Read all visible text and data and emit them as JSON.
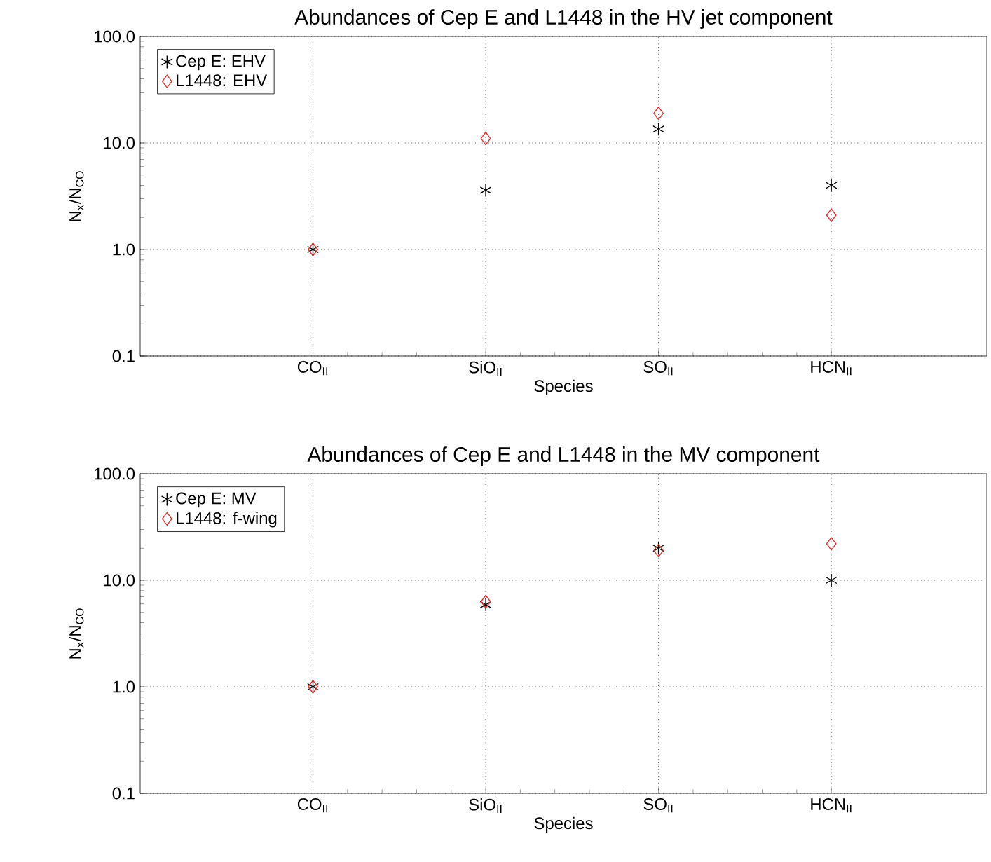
{
  "chart_data": [
    {
      "type": "scatter",
      "title": "Abundances of Cep E and L1448 in the HV jet component",
      "xlabel": "Species",
      "ylabel": "N$_{x}$/N$_{CO}$",
      "categories": [
        "CO$_{II}$",
        "SiO$_{II}$",
        "SO$_{II}$",
        "HCN$_{II}$"
      ],
      "series": [
        {
          "name": "Cep E: EHV",
          "color": "#000000",
          "marker": "cross",
          "values": [
            1.0,
            3.6,
            13.5,
            4.0
          ]
        },
        {
          "name": "L1448: EHV",
          "color": "#e03030",
          "marker": "diamond",
          "values": [
            1.0,
            11,
            19,
            2.1
          ]
        }
      ],
      "log": true,
      "ylim": [
        0.1,
        100
      ],
      "yticks": [
        0.1,
        {
          "value": 1,
          "label": "1.0"
        },
        {
          "value": 10,
          "label": "10.0"
        },
        {
          "value": 100,
          "label": "100.0"
        }
      ],
      "grid": true,
      "legend": "top left"
    },
    {
      "type": "scatter",
      "title": "Abundances of Cep E and L1448 in the MV component",
      "xlabel": "Species",
      "ylabel": "N$_{x}$/N$_{CO}$",
      "categories": [
        "CO$_{II}$",
        "SiO$_{II}$",
        "SO$_{II}$",
        "HCN$_{II}$"
      ],
      "series": [
        {
          "name": "Cep E: MV",
          "color": "#000000",
          "marker": "cross",
          "values": [
            1.0,
            5.9,
            20,
            10
          ]
        },
        {
          "name": "L1448: f-wing",
          "color": "#e03030",
          "marker": "diamond",
          "values": [
            1.0,
            6.3,
            19,
            22
          ]
        }
      ],
      "log": true,
      "ylim": [
        0.1,
        100
      ],
      "yticks": [
        0.1,
        {
          "value": 1,
          "label": "1.0"
        },
        {
          "value": 10,
          "label": "10.0"
        },
        {
          "value": 100,
          "label": "100.0"
        }
      ],
      "grid": true,
      "legend": "top left"
    }
  ]
}
